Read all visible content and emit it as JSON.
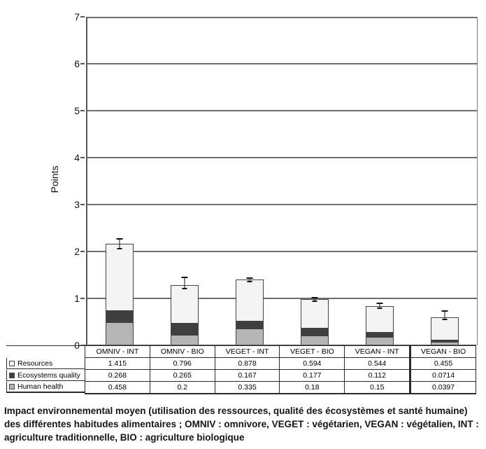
{
  "figure": {
    "ylabel": "Points",
    "caption": "Impact environnemental moyen (utilisation des ressources, qualité des écosystèmes et santé humaine) des différentes habitudes alimentaires ; OMNIV : omnivore, VEGET : végétarien, VEGAN : végétalien, INT : agriculture traditionnelle, BIO : agriculture biologique"
  },
  "chart_data": {
    "type": "bar",
    "stacked": true,
    "title": "",
    "xlabel": "",
    "ylabel": "Points",
    "ylim": [
      0,
      7
    ],
    "yticks": [
      0,
      1,
      2,
      3,
      4,
      5,
      6,
      7
    ],
    "grid": true,
    "legend_position": "table-left",
    "categories": [
      "OMNIV - INT",
      "OMNIV - BIO",
      "VEGET - INT",
      "VEGET - BIO",
      "VEGAN - INT",
      "VEGAN - BIO"
    ],
    "series": [
      {
        "name": "Human health",
        "color": "#b5b5b5",
        "values": [
          0.458,
          0.2,
          0.335,
          0.18,
          0.15,
          0.0397
        ]
      },
      {
        "name": "Ecosystems quality",
        "color": "#3f3f3f",
        "values": [
          0.268,
          0.265,
          0.167,
          0.177,
          0.112,
          0.0714
        ]
      },
      {
        "name": "Resources",
        "color": "#f4f4f4",
        "values": [
          1.415,
          0.796,
          0.878,
          0.594,
          0.544,
          0.455
        ]
      }
    ],
    "totals": [
      2.141,
      1.261,
      1.38,
      0.951,
      0.806,
      0.566
    ],
    "error_bars": {
      "low": [
        2.05,
        1.19,
        1.35,
        0.92,
        0.77,
        0.54
      ],
      "high": [
        2.25,
        1.43,
        1.42,
        1.0,
        0.88,
        0.72
      ]
    }
  },
  "table": {
    "rows": [
      {
        "label": "Resources",
        "swatch": "#f4f4f4",
        "values": [
          "1.415",
          "0.796",
          "0.878",
          "0.594",
          "0.544",
          "0.455"
        ]
      },
      {
        "label": "Ecosystems quality",
        "swatch": "#3f3f3f",
        "values": [
          "0.268",
          "0.265",
          "0.167",
          "0.177",
          "0.112",
          "0.0714"
        ]
      },
      {
        "label": "Human health",
        "swatch": "#b5b5b5",
        "values": [
          "0.458",
          "0.2",
          "0.335",
          "0.18",
          "0.15",
          "0.0397"
        ]
      }
    ]
  }
}
